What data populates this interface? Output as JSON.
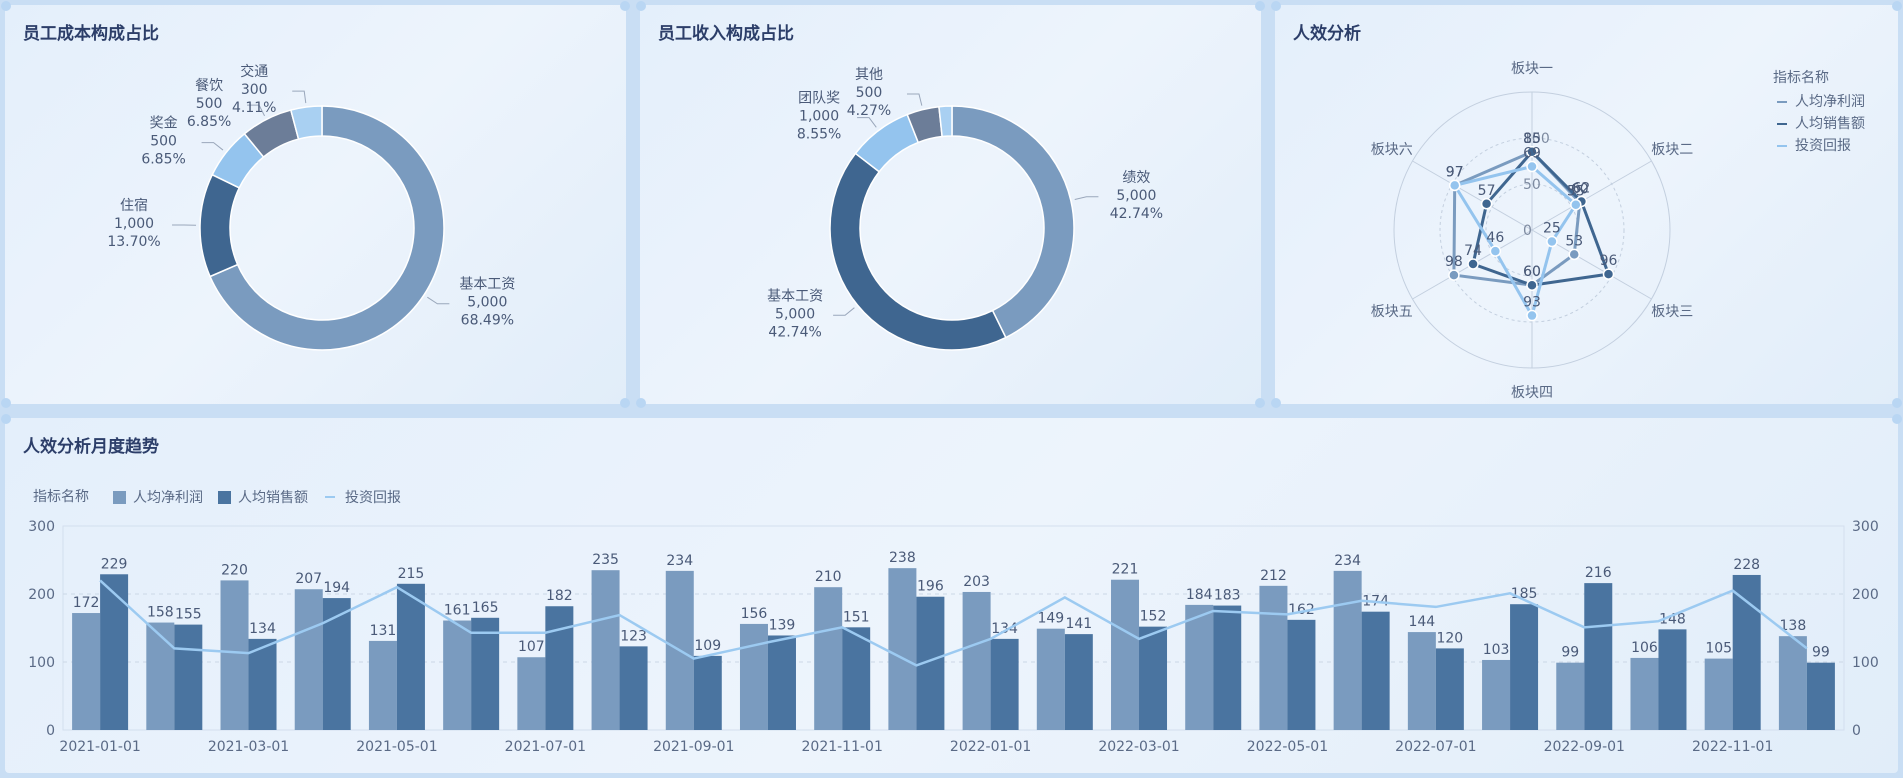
{
  "colors": {
    "c1": "#7a9bbf",
    "c2": "#3f6690",
    "c3": "#94c4ee",
    "c4": "#6c7d98",
    "c5": "#a9d0f2",
    "bar1": "#7a9bbf",
    "bar2": "#4a74a0",
    "line": "#9ccaf1",
    "text": "#4a5a78",
    "title": "#2c3e69"
  },
  "chart_data": [
    {
      "id": "cost",
      "type": "pie",
      "title": "员工成本构成占比",
      "slices": [
        {
          "name": "基本工资",
          "value": 5000,
          "value_label": "5,000",
          "percent": "68.49%"
        },
        {
          "name": "住宿",
          "value": 1000,
          "value_label": "1,000",
          "percent": "13.70%"
        },
        {
          "name": "奖金",
          "value": 500,
          "value_label": "500",
          "percent": "6.85%"
        },
        {
          "name": "餐饮",
          "value": 500,
          "value_label": "500",
          "percent": "6.85%"
        },
        {
          "name": "交通",
          "value": 300,
          "value_label": "300",
          "percent": "4.11%"
        }
      ]
    },
    {
      "id": "income",
      "type": "pie",
      "title": "员工收入构成占比",
      "slices": [
        {
          "name": "绩效",
          "value": 5000,
          "value_label": "5,000",
          "percent": "42.74%"
        },
        {
          "name": "基本工资",
          "value": 5000,
          "value_label": "5,000",
          "percent": "42.74%"
        },
        {
          "name": "团队奖",
          "value": 1000,
          "value_label": "1,000",
          "percent": "8.55%"
        },
        {
          "name": "其他",
          "value": 500,
          "value_label": "500",
          "percent": "4.27%"
        },
        {
          "name": "",
          "value": 200,
          "value_label": "",
          "percent": ""
        }
      ]
    },
    {
      "id": "radar",
      "type": "radar",
      "title": "人效分析",
      "legend_title": "指标名称",
      "indicators": [
        "板块一",
        "板块二",
        "板块三",
        "板块四",
        "板块五",
        "板块六"
      ],
      "max": 150,
      "ticks": [
        0,
        50,
        100
      ],
      "series": [
        {
          "name": "人均净利润",
          "values": [
            85,
            60,
            53,
            60,
            98,
            97
          ]
        },
        {
          "name": "人均销售额",
          "values": [
            85,
            62,
            96,
            60,
            74,
            57
          ]
        },
        {
          "name": "投资回报",
          "values": [
            69,
            55,
            25,
            93,
            46,
            97
          ]
        }
      ]
    },
    {
      "id": "trend",
      "type": "bar",
      "title": "人效分析月度趋势",
      "legend_title": "指标名称",
      "categories": [
        "2021-01-01",
        "2021-02-01",
        "2021-03-01",
        "2021-04-01",
        "2021-05-01",
        "2021-06-01",
        "2021-07-01",
        "2021-08-01",
        "2021-09-01",
        "2021-10-01",
        "2021-11-01",
        "2021-12-01",
        "2022-01-01",
        "2022-02-01",
        "2022-03-01",
        "2022-04-01",
        "2022-05-01",
        "2022-06-01",
        "2022-07-01",
        "2022-08-01",
        "2022-09-01",
        "2022-10-01",
        "2022-11-01",
        "2022-12-01"
      ],
      "tick_labels": [
        "2021-01-01",
        "2021-03-01",
        "2021-05-01",
        "2021-07-01",
        "2021-09-01",
        "2021-11-01",
        "2022-01-01",
        "2022-03-01",
        "2022-05-01",
        "2022-07-01",
        "2022-09-01",
        "2022-11-01"
      ],
      "ylim": [
        0,
        300
      ],
      "yticks": [
        0,
        100,
        200,
        300
      ],
      "series": [
        {
          "name": "人均净利润",
          "type": "bar",
          "values": [
            172,
            158,
            220,
            207,
            131,
            161,
            107,
            235,
            234,
            156,
            210,
            238,
            203,
            149,
            221,
            184,
            212,
            234,
            144,
            103,
            99,
            106,
            105,
            138
          ]
        },
        {
          "name": "人均销售额",
          "type": "bar",
          "values": [
            229,
            155,
            134,
            194,
            215,
            165,
            182,
            123,
            109,
            139,
            151,
            196,
            134,
            141,
            152,
            183,
            162,
            174,
            120,
            185,
            216,
            148,
            228,
            99
          ]
        },
        {
          "name": "投资回报",
          "type": "line",
          "values": [
            220,
            120,
            113,
            157,
            210,
            143,
            143,
            169,
            105,
            129,
            151,
            95,
            134,
            195,
            134,
            175,
            170,
            190,
            181,
            201,
            151,
            160,
            205,
            120
          ]
        }
      ]
    }
  ]
}
